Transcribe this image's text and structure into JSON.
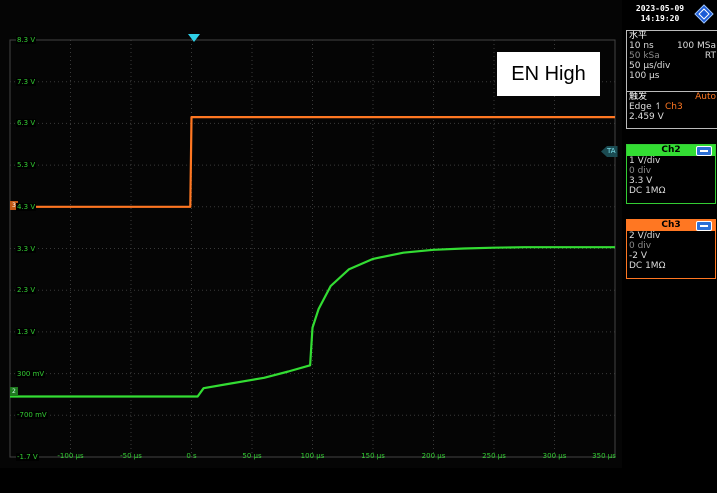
{
  "datetime": {
    "date": "2023-05-09",
    "time": "14:19:20"
  },
  "annotation": "EN High",
  "horizontal": {
    "title": "水平",
    "rows": [
      "10 ns",
      "100 MSa",
      "50 kSa",
      "RT",
      "50 µs/div",
      "100 µs"
    ]
  },
  "trigger": {
    "title": "触发",
    "mode": "Auto",
    "type": "Edge",
    "source": "Ch3",
    "level": "2.459 V"
  },
  "channels": [
    {
      "name": "Ch2",
      "scale": "1 V/div",
      "position": "0 div",
      "offset": "3.3 V",
      "coupling": "DC 1MΩ",
      "color": "#33dd33"
    },
    {
      "name": "Ch3",
      "scale": "2 V/div",
      "position": "0 div",
      "offset": "-2 V",
      "coupling": "DC 1MΩ",
      "color": "#ff7722"
    }
  ],
  "markers": {
    "trigger_arrow": "T",
    "time_anchor": "TA",
    "ch2_ground": "2",
    "ch3_ground": "3"
  },
  "axis": {
    "y_labels": [
      "8.3 V",
      "7.3 V",
      "6.3 V",
      "5.3 V",
      "4.3 V",
      "3.3 V",
      "2.3 V",
      "1.3 V",
      "300 mV",
      "-700 mV",
      "-1.7 V"
    ],
    "x_labels": [
      "-100 µs",
      "-50 µs",
      "0 s",
      "50 µs",
      "100 µs",
      "150 µs",
      "200 µs",
      "250 µs",
      "300 µs",
      "350 µs"
    ]
  },
  "chart_data": {
    "type": "line",
    "x_unit": "µs",
    "y_unit": "V",
    "xlim": [
      -150,
      350
    ],
    "ylim": [
      -1.7,
      8.3
    ],
    "grid": true,
    "series": [
      {
        "name": "Ch3",
        "color": "#ff7722",
        "x": [
          -150,
          -1,
          0,
          350
        ],
        "y": [
          4.3,
          4.3,
          6.45,
          6.45
        ]
      },
      {
        "name": "Ch2",
        "color": "#33dd33",
        "x": [
          -150,
          5,
          10,
          30,
          60,
          80,
          98,
          100,
          105,
          115,
          130,
          150,
          175,
          200,
          225,
          250,
          275,
          300,
          350
        ],
        "y": [
          -0.25,
          -0.25,
          -0.05,
          0.05,
          0.2,
          0.35,
          0.5,
          1.4,
          1.85,
          2.4,
          2.8,
          3.05,
          3.2,
          3.27,
          3.3,
          3.32,
          3.33,
          3.33,
          3.33
        ]
      }
    ]
  }
}
